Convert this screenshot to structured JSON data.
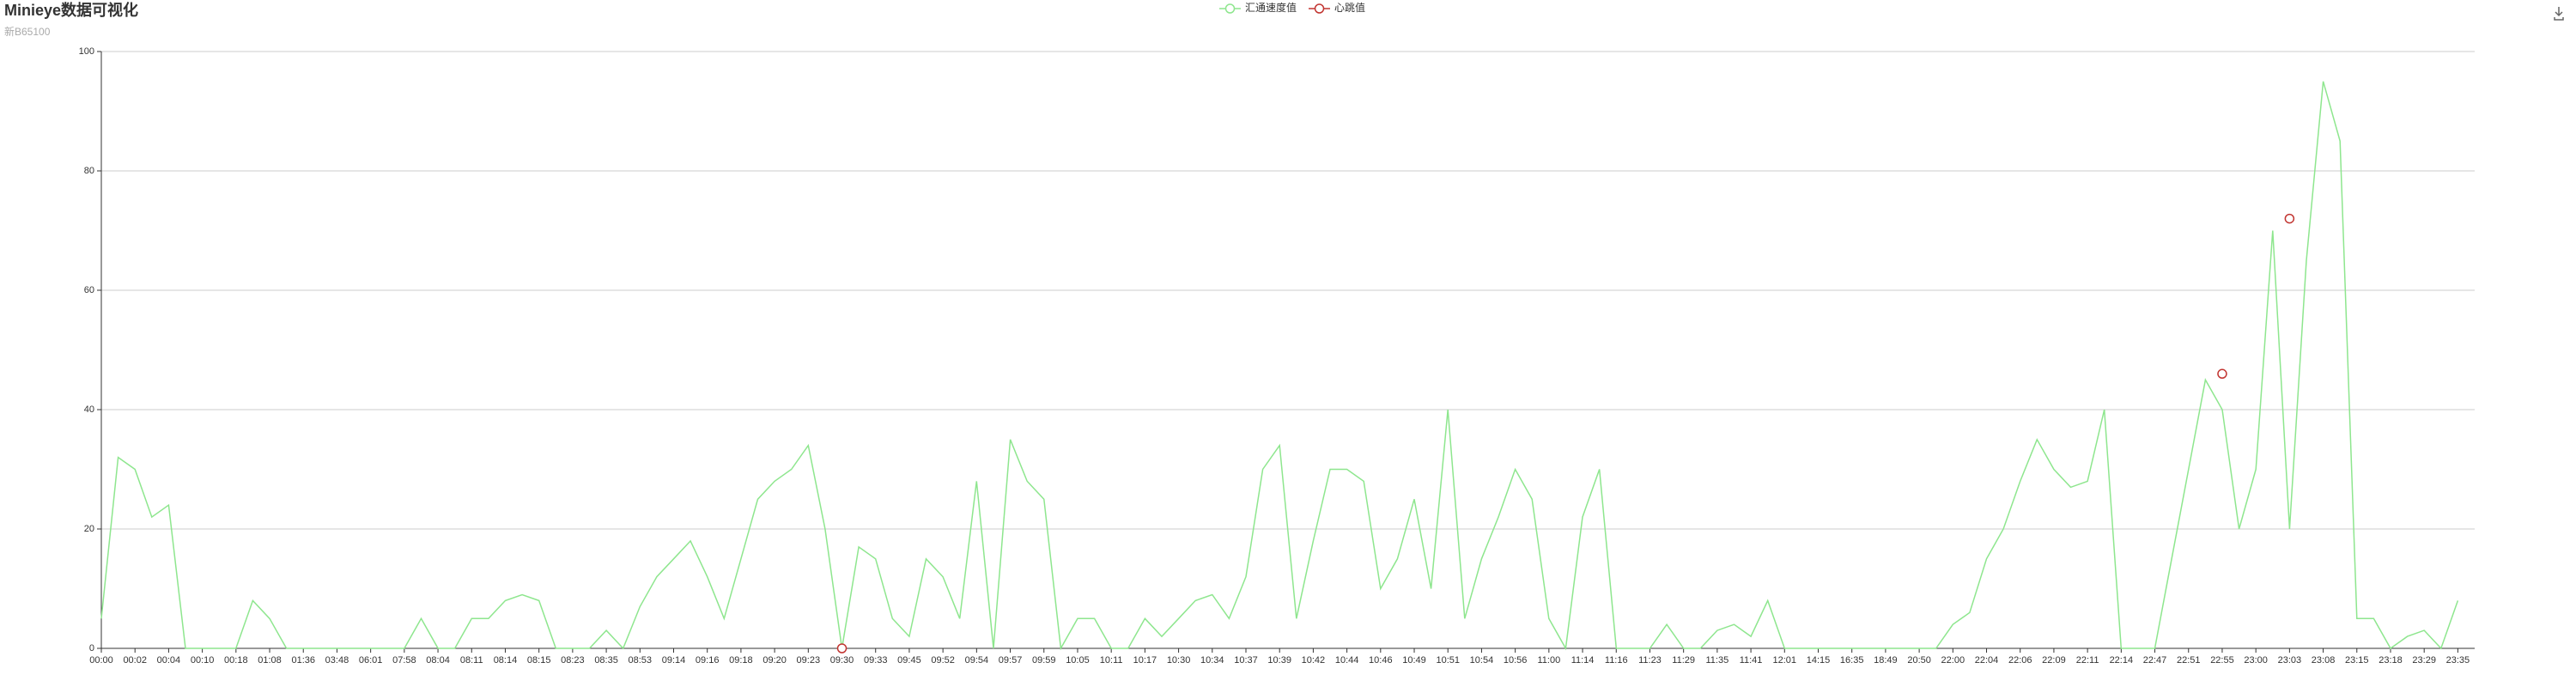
{
  "chart_data": {
    "type": "line",
    "title": "Minieye数据可视化",
    "subtitle": "新B65100",
    "categories": [
      "00:00",
      null,
      "00:02",
      null,
      "00:04",
      null,
      "00:10",
      null,
      "00:18",
      null,
      "01:08",
      null,
      "01:36",
      null,
      "03:48",
      null,
      "06:01",
      null,
      "07:58",
      null,
      "08:04",
      null,
      "08:11",
      null,
      "08:14",
      null,
      "08:15",
      null,
      "08:23",
      null,
      "08:35",
      null,
      "08:53",
      null,
      "09:14",
      null,
      "09:16",
      null,
      "09:18",
      null,
      "09:20",
      null,
      "09:23",
      null,
      "09:30",
      null,
      "09:33",
      null,
      "09:45",
      null,
      "09:52",
      null,
      "09:54",
      null,
      "09:57",
      null,
      "09:59",
      null,
      "10:05",
      null,
      "10:11",
      null,
      "10:17",
      null,
      "10:30",
      null,
      "10:34",
      null,
      "10:37",
      null,
      "10:39",
      null,
      "10:42",
      null,
      "10:44",
      null,
      "10:46",
      null,
      "10:49",
      null,
      "10:51",
      null,
      "10:54",
      null,
      "10:56",
      null,
      "11:00",
      null,
      "11:14",
      null,
      "11:16",
      null,
      "11:23",
      null,
      "11:29",
      null,
      "11:35",
      null,
      "11:41",
      null,
      "12:01",
      null,
      "14:15",
      null,
      "16:35",
      null,
      "18:49",
      null,
      "20:50",
      null,
      "22:00",
      null,
      "22:04",
      null,
      "22:06",
      null,
      "22:09",
      null,
      "22:11",
      null,
      "22:14",
      null,
      "22:47",
      null,
      "22:51",
      null,
      "22:55",
      null,
      "23:00",
      null,
      "23:03",
      null,
      "23:08",
      null,
      "23:15",
      null,
      "23:18",
      null,
      "23:29",
      null,
      "23:35",
      null
    ],
    "series": [
      {
        "name": "汇通速度值",
        "color": "#8ee68e",
        "values": [
          5,
          32,
          30,
          22,
          24,
          0,
          0,
          0,
          0,
          8,
          5,
          0,
          0,
          0,
          0,
          0,
          0,
          0,
          0,
          5,
          0,
          0,
          5,
          5,
          8,
          9,
          8,
          0,
          0,
          0,
          3,
          0,
          7,
          12,
          15,
          18,
          12,
          5,
          15,
          25,
          28,
          30,
          34,
          20,
          0,
          17,
          15,
          5,
          2,
          15,
          12,
          5,
          28,
          0,
          35,
          28,
          25,
          0,
          5,
          5,
          0,
          0,
          5,
          2,
          5,
          8,
          9,
          5,
          12,
          30,
          34,
          5,
          18,
          30,
          30,
          28,
          10,
          15,
          25,
          10,
          40,
          5,
          15,
          22,
          30,
          25,
          5,
          0,
          22,
          30,
          0,
          0,
          0,
          4,
          0,
          0,
          3,
          4,
          2,
          8,
          0,
          0,
          0,
          0,
          0,
          0,
          0,
          0,
          0,
          0,
          4,
          6,
          15,
          20,
          28,
          35,
          30,
          27,
          28,
          40,
          0,
          0,
          0,
          15,
          30,
          45,
          40,
          20,
          30,
          70,
          20,
          65,
          95,
          85,
          5,
          5,
          0,
          2,
          3,
          0,
          8,
          null
        ]
      },
      {
        "name": "心跳值",
        "color": "#c23531",
        "values": [
          null,
          null,
          null,
          null,
          null,
          null,
          null,
          null,
          null,
          null,
          null,
          null,
          null,
          null,
          null,
          null,
          null,
          null,
          null,
          null,
          null,
          null,
          null,
          null,
          null,
          null,
          null,
          null,
          null,
          null,
          null,
          null,
          null,
          null,
          null,
          null,
          null,
          null,
          null,
          null,
          null,
          null,
          null,
          null,
          0,
          null,
          null,
          null,
          null,
          null,
          null,
          null,
          null,
          null,
          null,
          null,
          null,
          null,
          null,
          null,
          null,
          null,
          null,
          null,
          null,
          null,
          null,
          null,
          null,
          null,
          null,
          null,
          null,
          null,
          null,
          null,
          null,
          null,
          null,
          null,
          null,
          null,
          null,
          null,
          null,
          null,
          null,
          null,
          null,
          null,
          null,
          null,
          null,
          null,
          null,
          null,
          null,
          null,
          null,
          null,
          null,
          null,
          null,
          null,
          null,
          null,
          null,
          null,
          null,
          null,
          null,
          null,
          null,
          null,
          null,
          null,
          null,
          null,
          null,
          null,
          null,
          null,
          null,
          null,
          null,
          null,
          46,
          null,
          null,
          null,
          72,
          null,
          null,
          null,
          null,
          null,
          null,
          null,
          null,
          null,
          null,
          null
        ]
      }
    ],
    "ylim": [
      0,
      100
    ],
    "yticks": [
      0,
      20,
      40,
      60,
      80,
      100
    ],
    "grid": true
  }
}
